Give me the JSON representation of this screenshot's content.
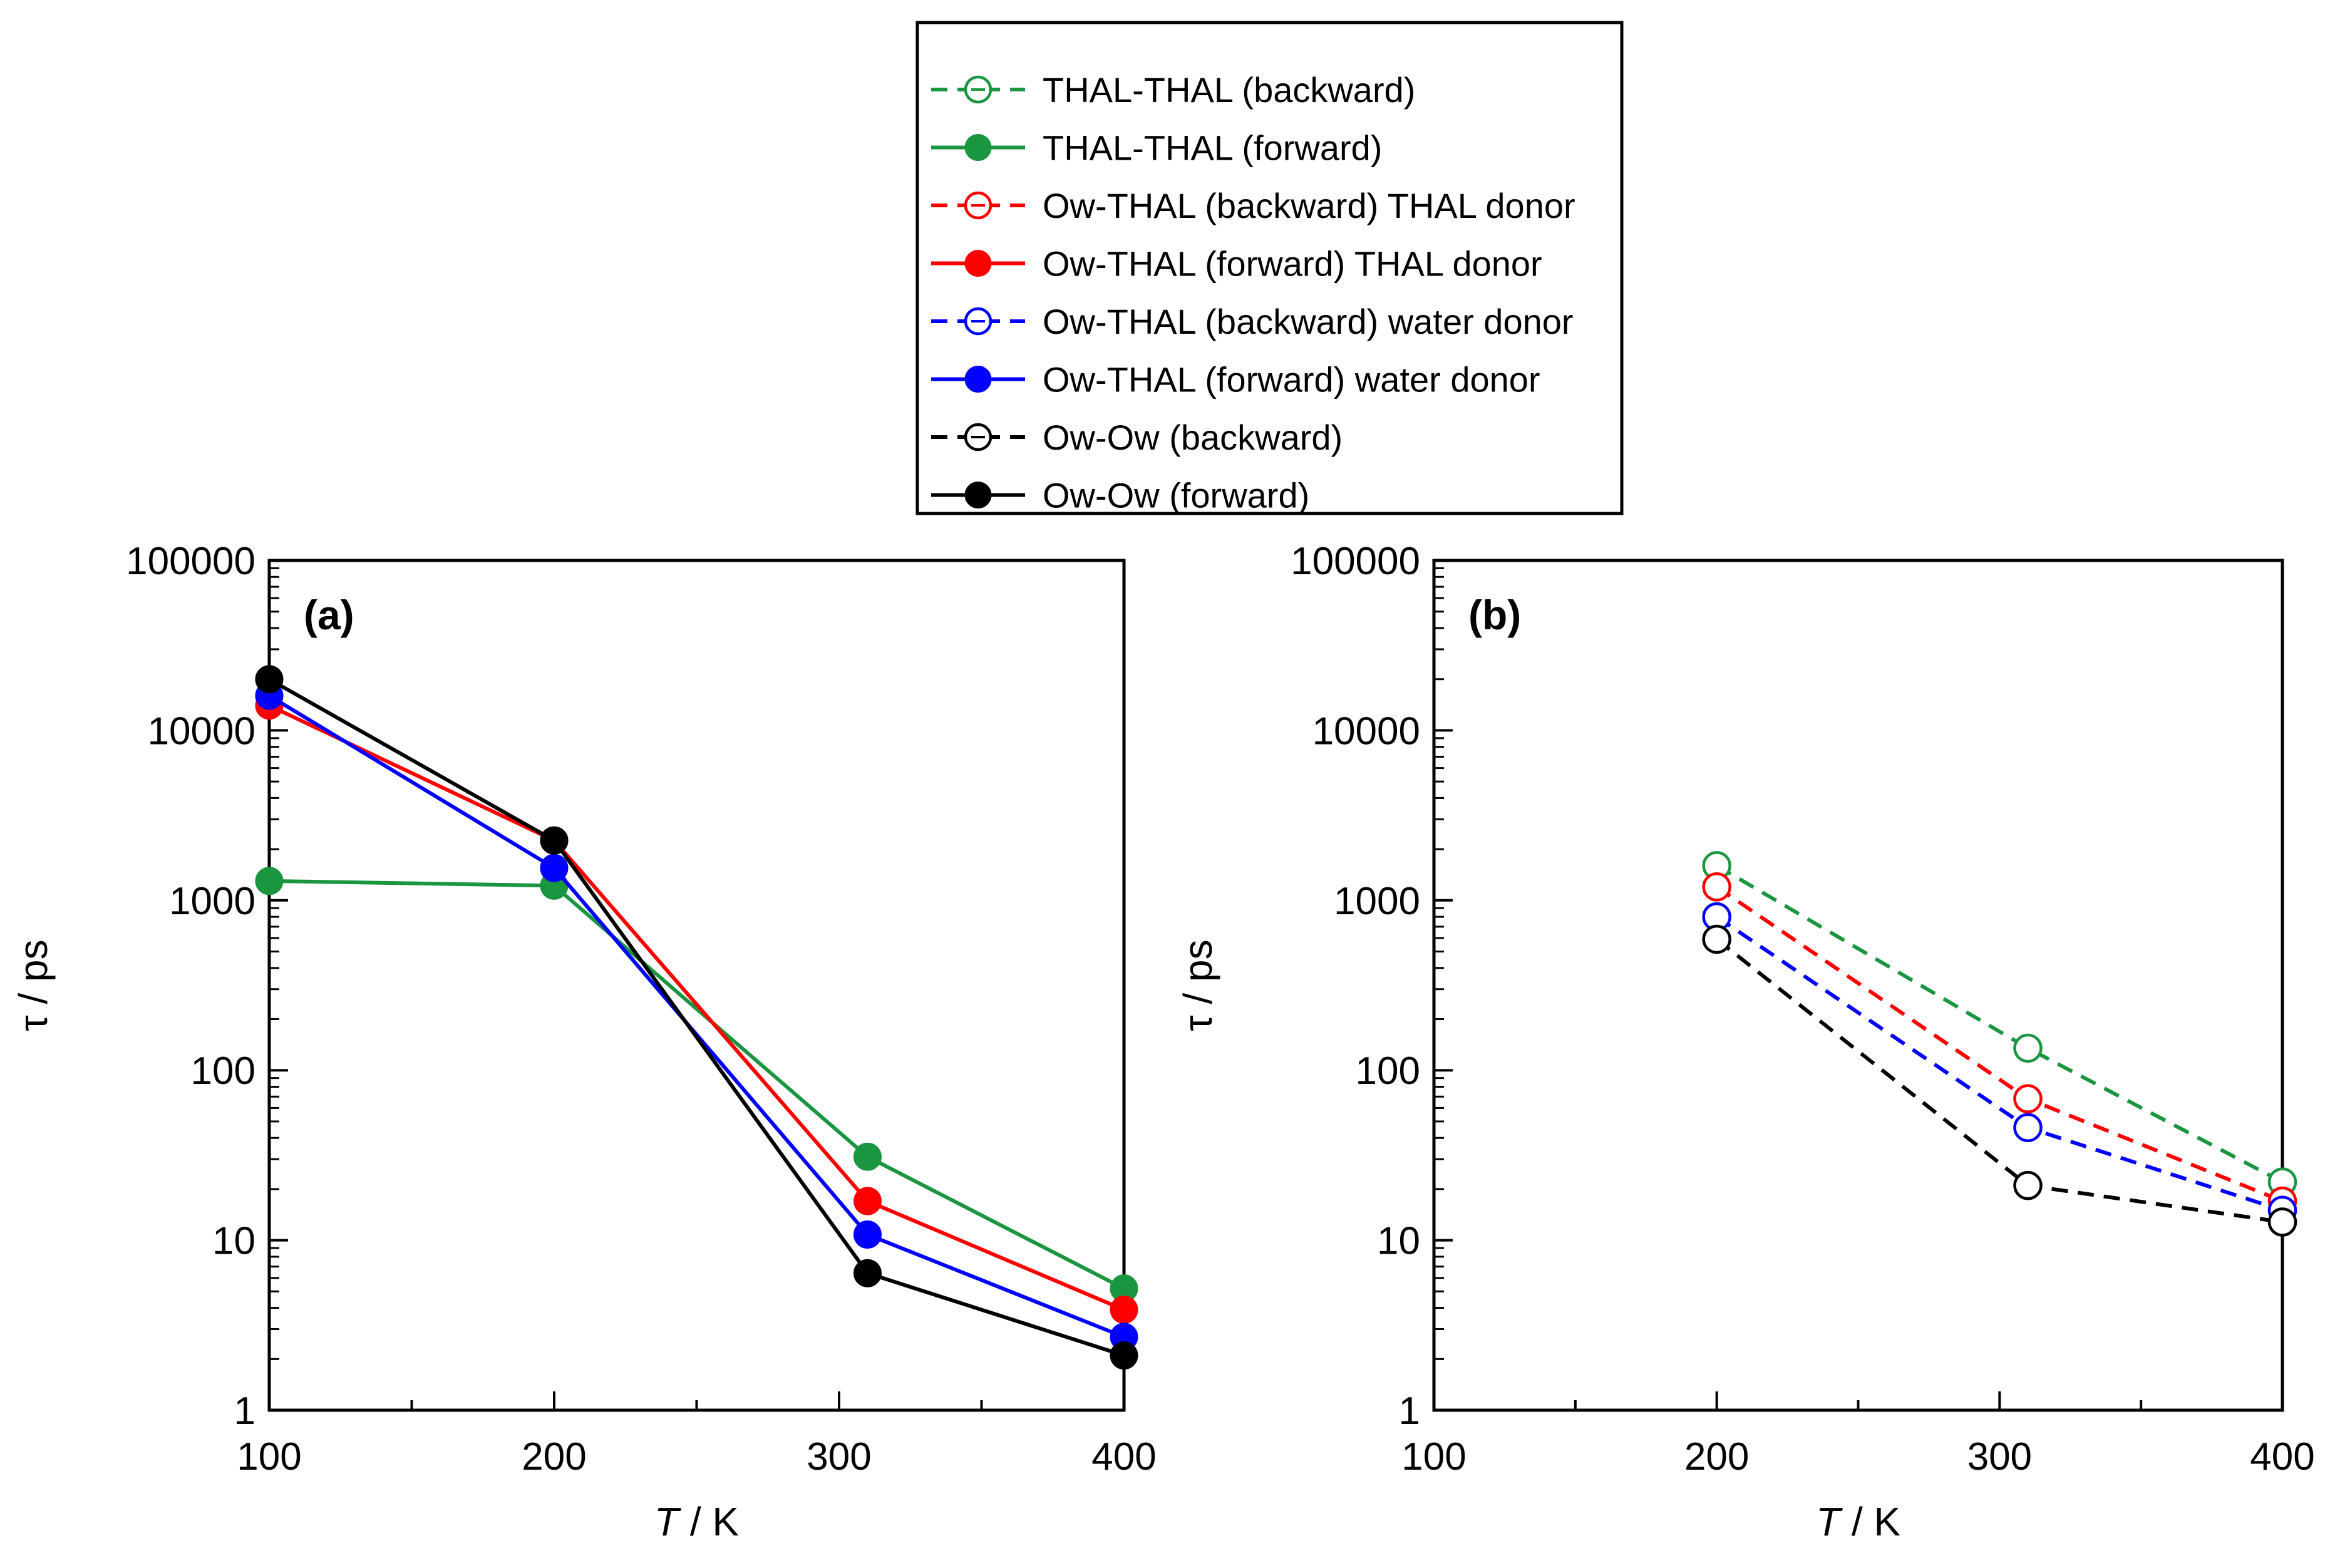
{
  "legend": {
    "entries": [
      {
        "label": "THAL-THAL (backward)",
        "color": "#1a9641",
        "style": "dashed",
        "marker": "open"
      },
      {
        "label": "THAL-THAL (forward)",
        "color": "#1a9641",
        "style": "solid",
        "marker": "filled"
      },
      {
        "label": "Ow-THAL (backward) THAL donor",
        "color": "#ff0000",
        "style": "dashed",
        "marker": "open"
      },
      {
        "label": "Ow-THAL (forward) THAL donor",
        "color": "#ff0000",
        "style": "solid",
        "marker": "filled"
      },
      {
        "label": "Ow-THAL (backward) water donor",
        "color": "#0000ff",
        "style": "dashed",
        "marker": "open"
      },
      {
        "label": "Ow-THAL (forward) water donor",
        "color": "#0000ff",
        "style": "solid",
        "marker": "filled"
      },
      {
        "label": "Ow-Ow (backward)",
        "color": "#000000",
        "style": "dashed",
        "marker": "open"
      },
      {
        "label": "Ow-Ow (forward)",
        "color": "#000000",
        "style": "solid",
        "marker": "filled"
      }
    ]
  },
  "chart_data": [
    {
      "type": "line",
      "panel_label": "(a)",
      "xlabel_italic": "T",
      "xlabel_rest": " / K",
      "ylabel": "τ / ps",
      "xlim": [
        100,
        400
      ],
      "ylim": [
        1,
        100000
      ],
      "yscale": "log",
      "xticks": [
        "100",
        "200",
        "300",
        "400"
      ],
      "yticks": [
        "1",
        "10",
        "100",
        "1000",
        "10000",
        "100000"
      ],
      "series": [
        {
          "name": "THAL-THAL (forward)",
          "color": "#1a9641",
          "style": "solid",
          "marker": "filled",
          "x": [
            100,
            200,
            310,
            400
          ],
          "y": [
            1300,
            1220,
            31,
            5.2
          ]
        },
        {
          "name": "Ow-THAL (forward) THAL donor",
          "color": "#ff0000",
          "style": "solid",
          "marker": "filled",
          "x": [
            100,
            200,
            310,
            400
          ],
          "y": [
            14000,
            2250,
            17,
            3.9
          ]
        },
        {
          "name": "Ow-THAL (forward) water donor",
          "color": "#0000ff",
          "style": "solid",
          "marker": "filled",
          "x": [
            100,
            200,
            310,
            400
          ],
          "y": [
            16000,
            1550,
            10.8,
            2.7
          ]
        },
        {
          "name": "Ow-Ow (forward)",
          "color": "#000000",
          "style": "solid",
          "marker": "filled",
          "x": [
            100,
            200,
            310,
            400
          ],
          "y": [
            20000,
            2250,
            6.4,
            2.1
          ]
        }
      ]
    },
    {
      "type": "line",
      "panel_label": "(b)",
      "xlabel_italic": "T",
      "xlabel_rest": " / K",
      "ylabel": "τ / ps",
      "xlim": [
        100,
        400
      ],
      "ylim": [
        1,
        100000
      ],
      "yscale": "log",
      "xticks": [
        "100",
        "200",
        "300",
        "400"
      ],
      "yticks": [
        "1",
        "10",
        "100",
        "1000",
        "10000",
        "100000"
      ],
      "series": [
        {
          "name": "THAL-THAL (backward)",
          "color": "#1a9641",
          "style": "dashed",
          "marker": "open",
          "x": [
            200,
            310,
            400
          ],
          "y": [
            1600,
            135,
            22
          ]
        },
        {
          "name": "Ow-THAL (backward) THAL donor",
          "color": "#ff0000",
          "style": "dashed",
          "marker": "open",
          "x": [
            200,
            310,
            400
          ],
          "y": [
            1200,
            68,
            17
          ]
        },
        {
          "name": "Ow-THAL (backward) water donor",
          "color": "#0000ff",
          "style": "dashed",
          "marker": "open",
          "x": [
            200,
            310,
            400
          ],
          "y": [
            800,
            46,
            15
          ]
        },
        {
          "name": "Ow-Ow (backward)",
          "color": "#000000",
          "style": "dashed",
          "marker": "open",
          "x": [
            200,
            310,
            400
          ],
          "y": [
            590,
            21,
            12.8
          ]
        }
      ]
    }
  ]
}
